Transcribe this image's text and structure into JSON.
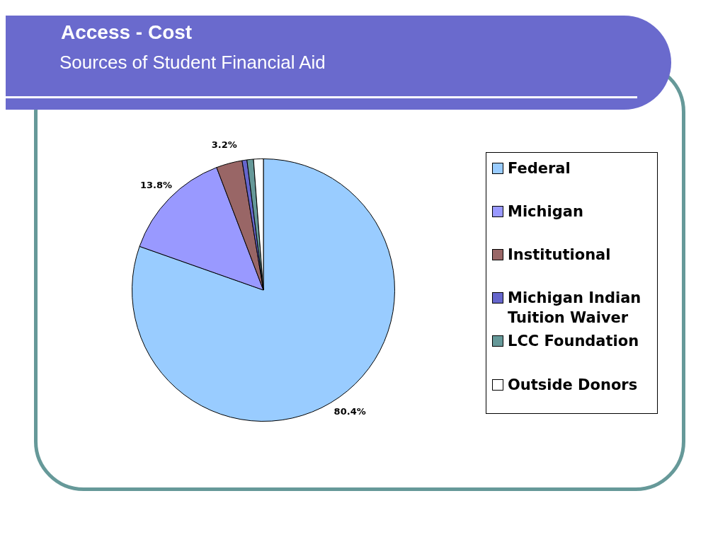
{
  "chart_data": {
    "type": "pie",
    "title": "Access - Cost",
    "subtitle": "Sources of Student Financial Aid",
    "categories": [
      "Federal",
      "Michigan",
      "Institutional",
      "Michigan Indian Tuition Waiver",
      "LCC Foundation",
      "Outside Donors"
    ],
    "values": [
      80.4,
      13.8,
      3.2,
      0.6,
      0.8,
      1.2
    ],
    "colors": [
      "#99ccff",
      "#9999ff",
      "#996666",
      "#6666cc",
      "#669999",
      "#ffffff"
    ],
    "value_labels": [
      "80.4%",
      "13.8%",
      "3.2%",
      null,
      null,
      null
    ],
    "legend": "right"
  }
}
